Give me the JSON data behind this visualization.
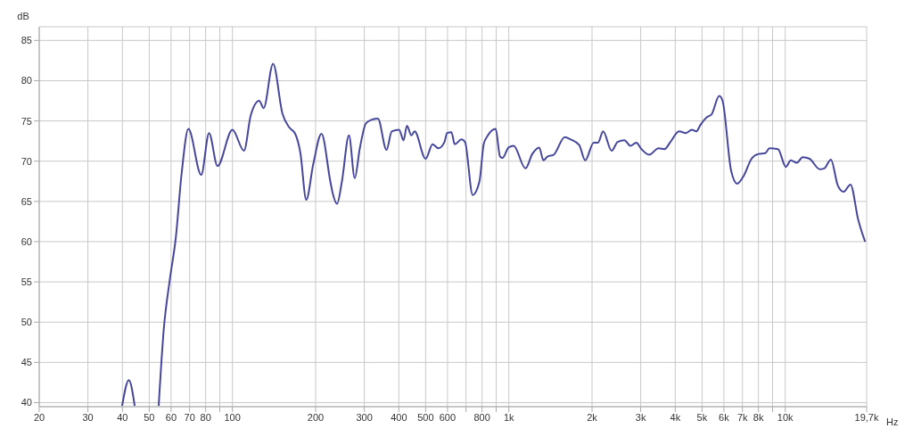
{
  "chart_data": {
    "type": "line",
    "xlabel": "Hz",
    "ylabel": "dB",
    "log": "x",
    "grid": true,
    "legend": false,
    "marker": "none",
    "line_style": "solid",
    "xlim": [
      20,
      19700
    ],
    "ylim": [
      39.5,
      86.7
    ],
    "xticks": [
      20,
      30,
      40,
      50,
      60,
      70,
      80,
      {
        "value": 90,
        "label": null
      },
      100,
      200,
      300,
      400,
      500,
      600,
      {
        "value": 700,
        "label": null
      },
      800,
      {
        "value": 900,
        "label": null
      },
      {
        "value": 1000,
        "label": "1k"
      },
      {
        "value": 2000,
        "label": "2k"
      },
      {
        "value": 3000,
        "label": "3k"
      },
      {
        "value": 4000,
        "label": "4k"
      },
      {
        "value": 5000,
        "label": "5k"
      },
      {
        "value": 6000,
        "label": "6k"
      },
      {
        "value": 7000,
        "label": "7k"
      },
      {
        "value": 8000,
        "label": "8k"
      },
      {
        "value": 9000,
        "label": null
      },
      {
        "value": 10000,
        "label": "10k"
      },
      {
        "value": 19700,
        "label": "19,7k"
      }
    ],
    "yticks": [
      40,
      45,
      50,
      55,
      60,
      65,
      70,
      75,
      80,
      85
    ],
    "x": [
      39.9,
      42.2,
      44.3,
      50,
      54.1,
      56.4,
      59.3,
      62.4,
      65.5,
      69.3,
      77.1,
      82.3,
      88.3,
      100,
      110.1,
      116.5,
      125,
      129.7,
      140.3,
      151.7,
      160.5,
      168.7,
      176,
      185,
      196,
      210,
      226,
      230.6,
      239,
      249,
      264,
      277,
      289,
      304,
      322,
      336,
      361,
      377,
      401,
      416,
      428,
      444,
      456,
      500,
      530,
      556,
      585,
      598,
      620,
      637,
      674,
      694,
      740,
      783,
      811,
      840,
      896,
      929,
      949,
      998,
      1041,
      1149,
      1216,
      1288,
      1334,
      1383,
      1453,
      1593,
      1674,
      1798,
      1889,
      2028,
      2102,
      2193,
      2355,
      2476,
      2620,
      2753,
      2892,
      3018,
      3218,
      3482,
      3657,
      3844,
      4130,
      4375,
      4594,
      4766,
      4934,
      5225,
      5410,
      5770,
      5932,
      6371,
      6697,
      7081,
      7551,
      7997,
      8468,
      8770,
      9419,
      10045,
      10478,
      11013,
      11565,
      12240,
      13337,
      13833,
      14630,
      15490,
      16260,
      17220,
      18370,
      19450
    ],
    "series": [
      {
        "color": "#45469c",
        "values": [
          39.6,
          42.8,
          39.6,
          null,
          39.6,
          49.0,
          55.2,
          60.5,
          68.5,
          74.0,
          68.3,
          73.5,
          69.4,
          73.9,
          71.3,
          75.7,
          77.5,
          76.6,
          82.1,
          75.9,
          74.2,
          73.4,
          71.1,
          65.2,
          69.6,
          73.4,
          67.5,
          66.0,
          64.7,
          67.5,
          73.2,
          67.9,
          71.6,
          74.7,
          75.2,
          75.3,
          71.4,
          73.7,
          73.9,
          72.6,
          74.4,
          73.2,
          73.7,
          70.3,
          72.1,
          71.6,
          72.4,
          73.5,
          73.6,
          72.1,
          72.7,
          72.4,
          65.8,
          67.5,
          72.1,
          73.2,
          74.0,
          70.6,
          70.4,
          71.7,
          71.9,
          69.1,
          70.9,
          71.7,
          70.1,
          70.6,
          70.8,
          73.0,
          72.7,
          72.0,
          70.1,
          72.3,
          72.3,
          73.7,
          71.3,
          72.4,
          72.6,
          71.9,
          72.3,
          71.5,
          70.8,
          71.6,
          71.5,
          72.4,
          73.7,
          73.5,
          73.9,
          73.7,
          74.5,
          75.5,
          75.8,
          78.1,
          77.5,
          68.8,
          67.2,
          68.2,
          70.3,
          70.9,
          71.0,
          71.6,
          71.5,
          69.3,
          70.1,
          69.8,
          70.5,
          70.3,
          69.0,
          69.1,
          70.2,
          67.0,
          66.2,
          67.1,
          62.7,
          60.0
        ]
      }
    ]
  }
}
